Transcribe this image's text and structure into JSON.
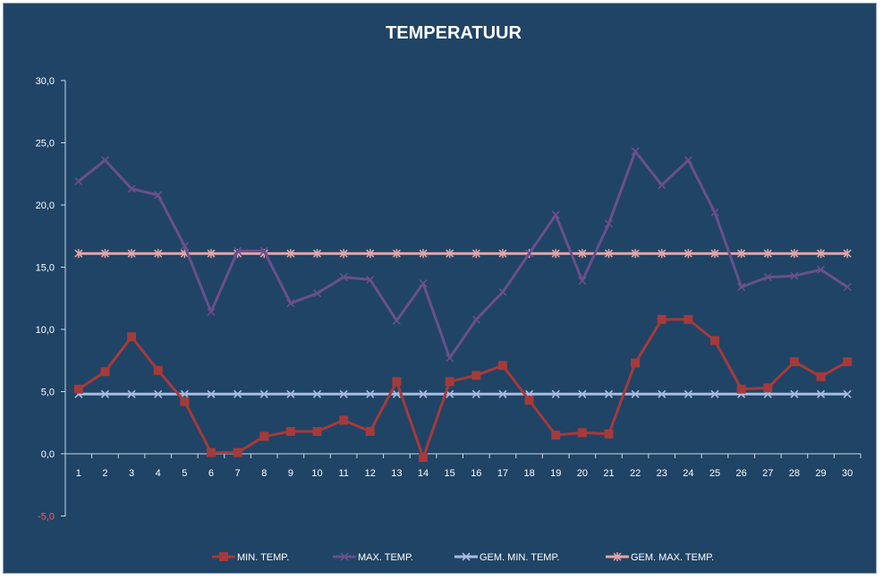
{
  "chart_data": {
    "type": "line",
    "title": "TEMPERATUUR",
    "xlabel": "",
    "ylabel": "",
    "x": [
      "1",
      "2",
      "3",
      "4",
      "5",
      "6",
      "7",
      "8",
      "9",
      "10",
      "11",
      "12",
      "13",
      "14",
      "15",
      "16",
      "17",
      "18",
      "19",
      "20",
      "21",
      "22",
      "23",
      "24",
      "25",
      "26",
      "27",
      "28",
      "29",
      "30"
    ],
    "ylim": [
      -5,
      30
    ],
    "yticks": [
      -5,
      0,
      5,
      10,
      15,
      20,
      25,
      30
    ],
    "ytick_labels": [
      "-5,0",
      "0,0",
      "5,0",
      "10,0",
      "15,0",
      "20,0",
      "25,0",
      "30,0"
    ],
    "grid": false,
    "legend_position": "bottom",
    "series": [
      {
        "name": "MIN. TEMP.",
        "color": "#a63a3a",
        "marker": "square",
        "values": [
          5.2,
          6.6,
          9.4,
          6.7,
          4.2,
          0.1,
          0.1,
          1.4,
          1.8,
          1.8,
          2.7,
          1.8,
          5.8,
          -0.3,
          5.8,
          6.3,
          7.1,
          4.3,
          1.5,
          1.7,
          1.6,
          7.3,
          10.8,
          10.8,
          9.1,
          5.2,
          5.3,
          7.4,
          6.2,
          7.4
        ]
      },
      {
        "name": "MAX. TEMP.",
        "color": "#6b4f8a",
        "marker": "x",
        "values": [
          21.9,
          23.6,
          21.3,
          20.8,
          16.7,
          11.4,
          16.3,
          16.3,
          12.1,
          12.9,
          14.2,
          14.0,
          10.7,
          13.7,
          7.7,
          10.8,
          13.0,
          16.1,
          19.2,
          13.9,
          18.5,
          24.3,
          21.6,
          23.6,
          19.4,
          13.4,
          14.2,
          14.3,
          14.8,
          13.4
        ]
      },
      {
        "name": "GEM. MIN. TEMP.",
        "color": "#a9bbe0",
        "marker": "x",
        "values": [
          4.8,
          4.8,
          4.8,
          4.8,
          4.8,
          4.8,
          4.8,
          4.8,
          4.8,
          4.8,
          4.8,
          4.8,
          4.8,
          4.8,
          4.8,
          4.8,
          4.8,
          4.8,
          4.8,
          4.8,
          4.8,
          4.8,
          4.8,
          4.8,
          4.8,
          4.8,
          4.8,
          4.8,
          4.8,
          4.8
        ]
      },
      {
        "name": "GEM. MAX. TEMP.",
        "color": "#e6a5a5",
        "marker": "star",
        "values": [
          16.1,
          16.1,
          16.1,
          16.1,
          16.1,
          16.1,
          16.1,
          16.1,
          16.1,
          16.1,
          16.1,
          16.1,
          16.1,
          16.1,
          16.1,
          16.1,
          16.1,
          16.1,
          16.1,
          16.1,
          16.1,
          16.1,
          16.1,
          16.1,
          16.1,
          16.1,
          16.1,
          16.1,
          16.1,
          16.1
        ]
      }
    ]
  }
}
